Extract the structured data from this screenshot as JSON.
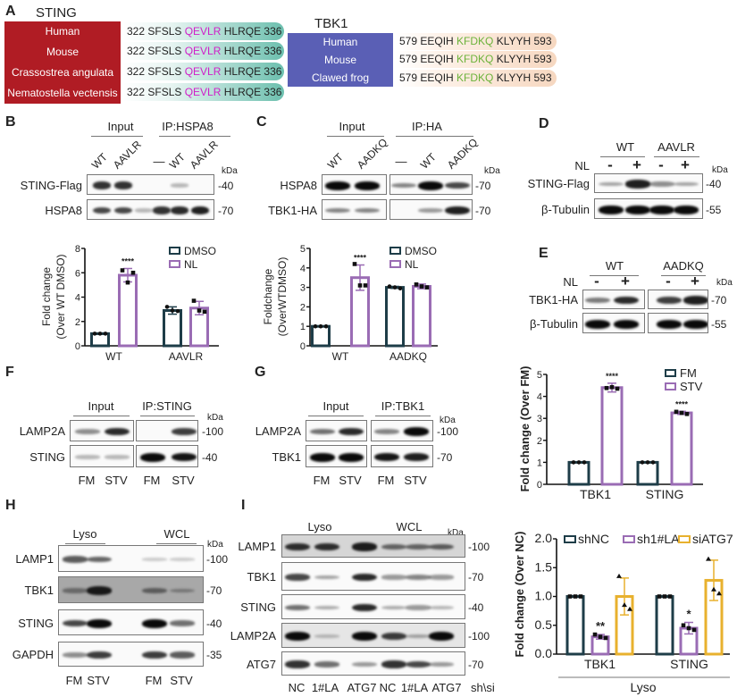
{
  "colors": {
    "sting_box": "#b01c24",
    "tbk1_box": "#5a5fb5",
    "sting_motif": "#d020c8",
    "tbk1_motif": "#6bb23a",
    "sting_pill": "#6cbfae",
    "tbk1_pill": "#f6d7c0",
    "ctrl": "#1e3d48",
    "treat": "#9a6cb4",
    "siatg7": "#e8b12e"
  },
  "panelA": {
    "label": "A",
    "sting": {
      "title": "STING",
      "species": [
        "Human",
        "Mouse",
        "Crassostrea angulata",
        "Nematostella vectensis"
      ],
      "seqs": [
        {
          "pre": "322 SFSLS ",
          "motif": "QEVLR",
          "post": " HLRQE 336"
        },
        {
          "pre": "322 SFSLS ",
          "motif": "QEVLR",
          "post": " HLRQE 336"
        },
        {
          "pre": "322 SFSLS ",
          "motif": "QEVLR",
          "post": " HLRQE 336"
        },
        {
          "pre": "322 SFSLS ",
          "motif": "QEVLR",
          "post": " HLRQE 336"
        }
      ]
    },
    "tbk1": {
      "title": "TBK1",
      "species": [
        "Human",
        "Mouse",
        "Clawed frog"
      ],
      "seqs": [
        {
          "pre": "579 EEQIH ",
          "motif": "KFDKQ",
          "post": " KLYYH 593"
        },
        {
          "pre": "579 EEQIH ",
          "motif": "KFDKQ",
          "post": " KLYYH 593"
        },
        {
          "pre": "579 EEQIH ",
          "motif": "KFDKQ",
          "post": " KLYYH 593"
        }
      ]
    }
  },
  "blots": {
    "B": {
      "label": "B",
      "headers": [
        "Input",
        "IP:HSPA8"
      ],
      "lanes_top": [
        "WT",
        "AAVLR",
        "",
        "—",
        "WT",
        "AAVLR"
      ],
      "kda": "kDa",
      "rows": [
        {
          "name": "STING-Flag",
          "marker": "40",
          "lanes": [
            0.8,
            0.8,
            0,
            0,
            0.15,
            0
          ]
        },
        {
          "name": "HSPA8",
          "marker": "70",
          "lanes": [
            0.7,
            0.7,
            0.15,
            0.8,
            0.85,
            0.9
          ]
        }
      ]
    },
    "C": {
      "label": "C",
      "headers": [
        "Input",
        "IP:HA"
      ],
      "lanes_top": [
        "WT",
        "AADKQ",
        "—",
        "WT",
        "AADKQ"
      ],
      "kda": "kDa",
      "rows": [
        {
          "name": "HSPA8",
          "marker": "70",
          "lanes": [
            1,
            1,
            0.4,
            1,
            0.7
          ]
        },
        {
          "name": "TBK1-HA",
          "marker": "70",
          "lanes": [
            0.4,
            0.4,
            0,
            0.3,
            0.9
          ]
        }
      ]
    },
    "D": {
      "label": "D",
      "headers": [
        "WT",
        "AAVLR"
      ],
      "treatment": "NL",
      "signs": [
        "-",
        "+",
        "-",
        "+"
      ],
      "kda": "kDa",
      "rows": [
        {
          "name": "STING-Flag",
          "marker": "40",
          "lanes": [
            0.25,
            0.9,
            0.35,
            0.25
          ]
        },
        {
          "name": "β-Tubulin",
          "marker": "55",
          "lanes": [
            1,
            1,
            1,
            1
          ]
        }
      ]
    },
    "E": {
      "label": "E",
      "headers": [
        "WT",
        "AADKQ"
      ],
      "treatment": "NL",
      "signs": [
        "-",
        "+",
        "-",
        "+"
      ],
      "kda": "kDa",
      "rows": [
        {
          "name": "TBK1-HA",
          "marker": "70",
          "lanes": [
            0.45,
            0.85,
            0.75,
            0.9
          ]
        },
        {
          "name": "β-Tubulin",
          "marker": "55",
          "lanes": [
            1,
            1,
            1,
            1
          ]
        }
      ]
    },
    "F": {
      "label": "F",
      "headers": [
        "Input",
        "IP:STING"
      ],
      "lanes_bottom": [
        "FM",
        "STV",
        "FM",
        "STV"
      ],
      "kda": "kDa",
      "rows": [
        {
          "name": "LAMP2A",
          "marker": "100",
          "lanes": [
            0.35,
            0.85,
            0,
            0.75
          ]
        },
        {
          "name": "STING",
          "marker": "40",
          "lanes": [
            0.15,
            0.15,
            1,
            0.95
          ]
        }
      ]
    },
    "G": {
      "label": "G",
      "headers": [
        "Input",
        "IP:TBK1"
      ],
      "lanes_bottom": [
        "FM",
        "STV",
        "FM",
        "STV"
      ],
      "kda": "kDa",
      "rows": [
        {
          "name": "LAMP2A",
          "marker": "100",
          "lanes": [
            0.5,
            0.85,
            0.4,
            1
          ]
        },
        {
          "name": "TBK1",
          "marker": "70",
          "lanes": [
            1,
            1,
            0.95,
            0.9
          ]
        }
      ]
    },
    "H": {
      "label": "H",
      "headers": [
        "Lyso",
        "WCL"
      ],
      "lanes_bottom": [
        "FM",
        "STV",
        "FM",
        "STV"
      ],
      "kda": "kDa",
      "rows": [
        {
          "name": "LAMP1",
          "marker": "100",
          "lanes": [
            0.6,
            0.55,
            0.05,
            0.05
          ]
        },
        {
          "name": "TBK1",
          "marker": "70",
          "lanes": [
            0.3,
            0.9,
            0.4,
            0.2
          ]
        },
        {
          "name": "STING",
          "marker": "40",
          "lanes": [
            0.7,
            1,
            1,
            0.5
          ]
        },
        {
          "name": "GAPDH",
          "marker": "35",
          "lanes": [
            0.35,
            0.75,
            0.75,
            0.6
          ]
        }
      ]
    },
    "I": {
      "label": "I",
      "headers": [
        "Lyso",
        "WCL"
      ],
      "lanes_bottom": [
        "NC",
        "1#LA",
        "ATG7",
        "NC",
        "1#LA",
        "ATG7"
      ],
      "suffix": "sh\\si",
      "kda": "kDa",
      "rows": [
        {
          "name": "LAMP1",
          "marker": "100",
          "lanes": [
            0.8,
            0.8,
            0.9,
            0.5,
            0.5,
            0.55
          ]
        },
        {
          "name": "TBK1",
          "marker": "70",
          "lanes": [
            0.7,
            0.25,
            0.85,
            0.3,
            0.4,
            0.3
          ]
        },
        {
          "name": "STING",
          "marker": "40",
          "lanes": [
            0.5,
            0.2,
            0.85,
            0.2,
            0.3,
            0.15
          ]
        },
        {
          "name": "LAMP2A",
          "marker": "100",
          "lanes": [
            1,
            0.1,
            1,
            0.75,
            0.2,
            1
          ]
        },
        {
          "name": "ATG7",
          "marker": "70",
          "lanes": [
            0.8,
            0.5,
            0.3,
            0.8,
            0.7,
            0.3
          ]
        }
      ]
    }
  },
  "chart_data": [
    {
      "id": "B",
      "type": "bar",
      "ylabel": [
        "Fold change",
        "(Over WT DMSO)"
      ],
      "ylim": [
        0,
        8
      ],
      "yticks": [
        "0",
        "2",
        "4",
        "6",
        "8"
      ],
      "categories": [
        "WT",
        "AAVLR"
      ],
      "series": [
        {
          "name": "DMSO",
          "color": "#1e3d48",
          "values": [
            1,
            2.9
          ],
          "err": [
            0.05,
            0.3
          ],
          "points": [
            [
              1,
              1,
              1
            ],
            [
              3.2,
              2.9,
              2.85
            ]
          ]
        },
        {
          "name": "NL",
          "color": "#9a6cb4",
          "values": [
            5.8,
            3.1
          ],
          "err": [
            0.55,
            0.55
          ],
          "points": [
            [
              6.2,
              5.2,
              6.0
            ],
            [
              3.7,
              2.9,
              2.8
            ]
          ]
        }
      ],
      "significance": [
        [
          "",
          ""
        ],
        [
          "****",
          ""
        ]
      ],
      "legend": "top-right"
    },
    {
      "id": "C",
      "type": "bar",
      "ylabel": [
        "Foldchange",
        "(OverWTDMSO)"
      ],
      "ylim": [
        0,
        5
      ],
      "yticks": [
        "0",
        "1",
        "2",
        "3",
        "4",
        "5"
      ],
      "categories": [
        "WT",
        "AADKQ"
      ],
      "series": [
        {
          "name": "DMSO",
          "color": "#1e3d48",
          "values": [
            1,
            3.0
          ],
          "err": [
            0.02,
            0.05
          ],
          "points": [
            [
              1,
              1,
              1
            ],
            [
              3.05,
              3.0,
              2.95
            ]
          ]
        },
        {
          "name": "NL",
          "color": "#9a6cb4",
          "values": [
            3.5,
            3.05
          ],
          "err": [
            0.65,
            0.12
          ],
          "points": [
            [
              4.2,
              3.1,
              3.1
            ],
            [
              3.15,
              3.05,
              3.0
            ]
          ]
        }
      ],
      "significance": [
        [
          "",
          ""
        ],
        [
          "****",
          ""
        ]
      ],
      "legend": "top-right"
    },
    {
      "id": "F2",
      "type": "bar",
      "ylabel": [
        "Fold change (Over FM)"
      ],
      "ylim": [
        0,
        5
      ],
      "yticks": [
        "0",
        "1",
        "2",
        "3",
        "4",
        "5"
      ],
      "categories": [
        "TBK1",
        "STING"
      ],
      "series": [
        {
          "name": "FM",
          "color": "#1e3d48",
          "values": [
            1,
            1
          ],
          "err": [
            0,
            0
          ],
          "points": [
            [
              1,
              1,
              1
            ],
            [
              1,
              1,
              1
            ]
          ]
        },
        {
          "name": "STV",
          "color": "#9a6cb4",
          "values": [
            4.4,
            3.25
          ],
          "err": [
            0.2,
            0.07
          ],
          "points": [
            [
              4.38,
              4.42,
              4.35
            ],
            [
              3.3,
              3.25,
              3.2
            ]
          ]
        }
      ],
      "significance": [
        [
          "",
          ""
        ],
        [
          "****",
          "****"
        ]
      ],
      "legend": "top-right"
    },
    {
      "id": "I2",
      "type": "bar",
      "ylabel": [
        "Fold change (Over NC)"
      ],
      "ylim": [
        0,
        2
      ],
      "yticks": [
        "0.0",
        "0.5",
        "1.0",
        "1.5",
        "2.0"
      ],
      "categories": [
        "TBK1",
        "STING"
      ],
      "group_label": "Lyso",
      "series": [
        {
          "name": "shNC",
          "color": "#1e3d48",
          "values": [
            1,
            1
          ],
          "err": [
            0,
            0
          ],
          "points": [
            [
              1,
              1,
              1
            ],
            [
              1,
              1,
              1
            ]
          ]
        },
        {
          "name": "sh1#LA",
          "color": "#9a6cb4",
          "values": [
            0.3,
            0.45
          ],
          "err": [
            0.04,
            0.1
          ],
          "points": [
            [
              0.34,
              0.3,
              0.28
            ],
            [
              0.5,
              0.45,
              0.42
            ]
          ]
        },
        {
          "name": "siATG7",
          "color": "#e8b12e",
          "values": [
            1.0,
            1.28
          ],
          "err": [
            0.32,
            0.35
          ],
          "points": [
            [
              1.35,
              0.85,
              0.78
            ],
            [
              1.65,
              1.12,
              1.05
            ]
          ]
        }
      ],
      "significance": [
        [
          "",
          ""
        ],
        [
          "**",
          "*"
        ],
        [
          "",
          ""
        ]
      ],
      "legend": "top"
    }
  ]
}
